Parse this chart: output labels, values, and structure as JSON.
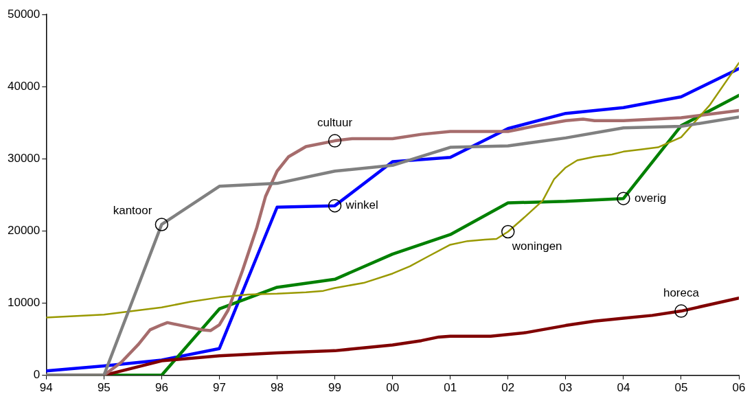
{
  "chart_data": {
    "type": "line",
    "xlim": [
      1994,
      2006
    ],
    "ylim": [
      0,
      50000
    ],
    "xticks": [
      {
        "value": 1994,
        "label": "94"
      },
      {
        "value": 1995,
        "label": "95"
      },
      {
        "value": 1996,
        "label": "96"
      },
      {
        "value": 1997,
        "label": "97"
      },
      {
        "value": 1998,
        "label": "98"
      },
      {
        "value": 1999,
        "label": "99"
      },
      {
        "value": 2000,
        "label": "00"
      },
      {
        "value": 2001,
        "label": "01"
      },
      {
        "value": 2002,
        "label": "02"
      },
      {
        "value": 2003,
        "label": "03"
      },
      {
        "value": 2004,
        "label": "04"
      },
      {
        "value": 2005,
        "label": "05"
      },
      {
        "value": 2006,
        "label": "06"
      }
    ],
    "yticks": [
      0,
      10000,
      20000,
      30000,
      40000,
      50000
    ],
    "grid": false,
    "legend": false,
    "marker": "none",
    "series": [
      {
        "color": "#808080",
        "x": [
          1994,
          1995,
          1996,
          1997,
          1998,
          1999,
          2000,
          2001,
          2002,
          2003,
          2004,
          2005,
          2006
        ],
        "values": [
          0,
          0,
          20900,
          26200,
          26600,
          28300,
          29100,
          31600,
          31800,
          32900,
          34300,
          34500,
          35800
        ]
      },
      {
        "color": "#999900",
        "x": [
          1994,
          1995,
          1995.5,
          1996,
          1996.5,
          1997,
          1997.5,
          1998,
          1998.5,
          1998.8,
          1999,
          1999.5,
          2000,
          2000.3,
          2000.6,
          2001,
          2001.3,
          2001.6,
          2001.8,
          2002,
          2002.3,
          2002.6,
          2002.8,
          2003,
          2003.2,
          2003.5,
          2003.8,
          2004,
          2004.3,
          2004.6,
          2005,
          2005.5,
          2006
        ],
        "values": [
          8000,
          8400,
          8900,
          9400,
          10200,
          10800,
          11200,
          11300,
          11500,
          11700,
          12100,
          12800,
          14100,
          15100,
          16400,
          18100,
          18600,
          18800,
          18900,
          19900,
          22000,
          24200,
          27200,
          28800,
          29800,
          30300,
          30600,
          31000,
          31300,
          31600,
          33000,
          37500,
          43300
        ]
      },
      {
        "color": "#a66c6c",
        "x": [
          1994,
          1995,
          1995.3,
          1995.6,
          1995.8,
          1996,
          1996.1,
          1996.4,
          1996.7,
          1996.85,
          1997,
          1997.15,
          1997.4,
          1997.65,
          1997.8,
          1998,
          1998.2,
          1998.5,
          1999,
          1999.3,
          2000,
          2000.5,
          2001,
          2002,
          2002.5,
          2003,
          2003.3,
          2003.5,
          2004,
          2005,
          2006
        ],
        "values": [
          0,
          0,
          1800,
          4300,
          6300,
          7000,
          7300,
          6800,
          6300,
          6200,
          7000,
          9000,
          14500,
          20500,
          24800,
          28300,
          30300,
          31700,
          32500,
          32800,
          32800,
          33400,
          33800,
          33800,
          34600,
          35300,
          35500,
          35300,
          35300,
          35700,
          36700
        ]
      },
      {
        "color": "#800000",
        "x": [
          1995,
          1996,
          1997,
          1998,
          1999,
          2000,
          2000.5,
          2000.8,
          2001,
          2001.7,
          2002.3,
          2003,
          2003.5,
          2004,
          2004.5,
          2005,
          2006
        ],
        "values": [
          0,
          2000,
          2700,
          3100,
          3400,
          4200,
          4800,
          5300,
          5400,
          5400,
          5900,
          6900,
          7500,
          7900,
          8300,
          8900,
          10700
        ]
      },
      {
        "color": "#008000",
        "x": [
          1994,
          1995,
          1996,
          1997,
          1998,
          1999,
          2000,
          2001,
          2002,
          2003,
          2004,
          2005,
          2006
        ],
        "values": [
          0,
          0,
          0,
          9200,
          12200,
          13300,
          16800,
          19500,
          23900,
          24100,
          24500,
          34600,
          38800
        ]
      },
      {
        "color": "#0000ff",
        "x": [
          1994,
          1995,
          1996,
          1997,
          1998,
          1999,
          2000,
          2001,
          2002,
          2003,
          2004,
          2005,
          2006
        ],
        "values": [
          600,
          1300,
          2100,
          3700,
          23300,
          23500,
          29600,
          30200,
          34200,
          36300,
          37100,
          38600,
          42500
        ]
      }
    ],
    "annotations": [
      {
        "text": "cultuur",
        "x": 1999,
        "y": 32500
      },
      {
        "text": "kantoor",
        "x": 1996,
        "y": 20900
      },
      {
        "text": "winkel",
        "x": 1999,
        "y": 23500
      },
      {
        "text": "woningen",
        "x": 2002,
        "y": 19900
      },
      {
        "text": "overig",
        "x": 2004,
        "y": 24500
      },
      {
        "text": "horeca",
        "x": 2005,
        "y": 8900
      }
    ]
  }
}
